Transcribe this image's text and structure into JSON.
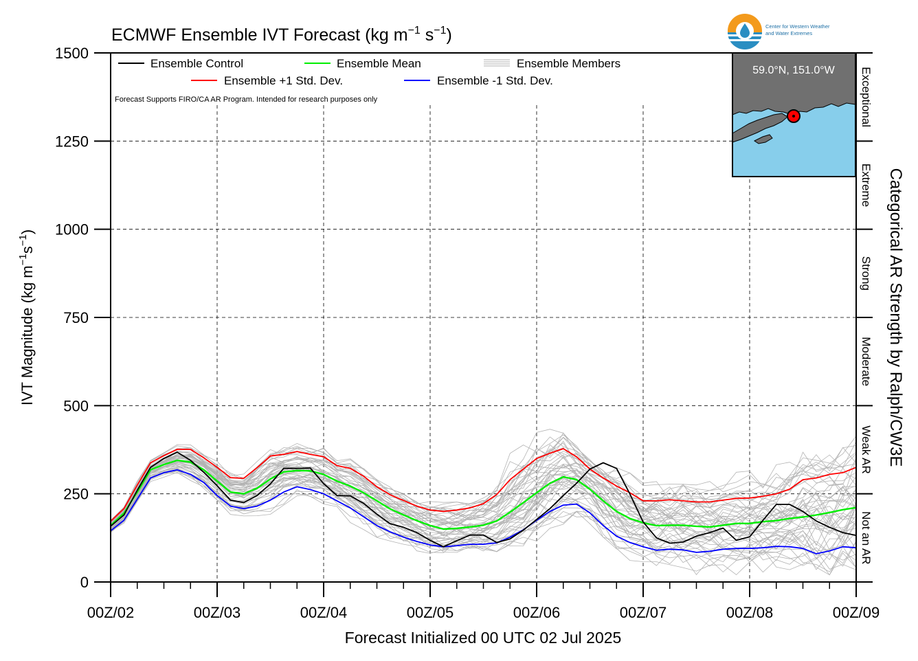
{
  "chart_data": {
    "type": "line",
    "title": "ECMWF Ensemble IVT Forecast (kg m",
    "title_sup1": "−1",
    "title_mid": " s",
    "title_sup2": "−1",
    "title_end": ")",
    "ylabel": "IVT Magnitude (kg m",
    "ylabel_sup1": "−1",
    "ylabel_mid": "s",
    "ylabel_sup2": "−1",
    "ylabel_end": ")",
    "xlabel": "Forecast Initialized 00 UTC 02 Jul 2025",
    "right_label": "Categorical AR Strength by Ralph/CW3E",
    "disclaimer": "Forecast Supports FIRO/CA AR Program. Intended for research purposes only",
    "ylim": [
      0,
      1500
    ],
    "xlim": [
      0,
      168
    ],
    "y_ticks": [
      0,
      250,
      500,
      750,
      1000,
      1250,
      1500
    ],
    "y_tick_labels": [
      "0",
      "250",
      "500",
      "750",
      "1000",
      "1250",
      "1500"
    ],
    "x_ticks": [
      0,
      24,
      48,
      72,
      96,
      120,
      144,
      168
    ],
    "x_tick_labels": [
      "00Z/02",
      "00Z/03",
      "00Z/04",
      "00Z/05",
      "00Z/06",
      "00Z/07",
      "00Z/08",
      "00Z/09"
    ],
    "categories": [
      {
        "label": "Not an AR",
        "from": 0,
        "to": 250
      },
      {
        "label": "Weak AR",
        "from": 250,
        "to": 500
      },
      {
        "label": "Moderate",
        "from": 500,
        "to": 750
      },
      {
        "label": "Strong",
        "from": 750,
        "to": 1000
      },
      {
        "label": "Extreme",
        "from": 1000,
        "to": 1250
      },
      {
        "label": "Exceptional",
        "from": 1250,
        "to": 1500
      }
    ],
    "legend": {
      "placement": "top-left",
      "control": "Ensemble Control",
      "mean": "Ensemble Mean",
      "members": "Ensemble Members",
      "plus_std": "Ensemble +1 Std. Dev.",
      "minus_std": "Ensemble -1 Std. Dev."
    },
    "inset": {
      "location_label": "59.0°N, 151.0°W",
      "land_color": "#707070",
      "ocean_color": "#87ceeb",
      "marker_color": "#ff0000"
    },
    "logo_text": [
      "Center for Western Weather",
      "and Water Extremes"
    ],
    "x": [
      0,
      3,
      6,
      9,
      12,
      15,
      18,
      21,
      24,
      27,
      30,
      33,
      36,
      39,
      42,
      45,
      48,
      51,
      54,
      57,
      60,
      63,
      66,
      69,
      72,
      75,
      78,
      81,
      84,
      87,
      90,
      93,
      96,
      99,
      102,
      105,
      108,
      111,
      114,
      117,
      120,
      123,
      126,
      129,
      132,
      135,
      138,
      141,
      144,
      147,
      150,
      153,
      156,
      159,
      162,
      165,
      168
    ],
    "series": [
      {
        "name": "Ensemble +1 Std. Dev.",
        "color": "#ff0000",
        "values": [
          172,
          208,
          275,
          338,
          358,
          376,
          376,
          352,
          325,
          296,
          294,
          324,
          357,
          362,
          370,
          362,
          355,
          330,
          322,
          300,
          270,
          247,
          231,
          215,
          204,
          200,
          204,
          210,
          222,
          248,
          290,
          320,
          350,
          365,
          378,
          355,
          320,
          295,
          272,
          253,
          230,
          230,
          233,
          230,
          227,
          227,
          232,
          237,
          238,
          243,
          250,
          263,
          290,
          295,
          305,
          310,
          325
        ]
      },
      {
        "name": "Ensemble Mean",
        "color": "#00ee00",
        "values": [
          160,
          195,
          255,
          318,
          333,
          345,
          340,
          318,
          286,
          255,
          250,
          266,
          292,
          312,
          316,
          315,
          305,
          286,
          272,
          253,
          230,
          207,
          190,
          174,
          160,
          150,
          152,
          156,
          161,
          173,
          198,
          225,
          253,
          280,
          298,
          290,
          263,
          230,
          200,
          180,
          168,
          160,
          161,
          161,
          158,
          156,
          161,
          166,
          166,
          171,
          174,
          180,
          184,
          190,
          197,
          205,
          211
        ]
      },
      {
        "name": "Ensemble -1 Std. Dev.",
        "color": "#0000ff",
        "values": [
          145,
          175,
          235,
          295,
          310,
          318,
          305,
          282,
          245,
          215,
          208,
          215,
          232,
          255,
          270,
          262,
          250,
          230,
          210,
          185,
          160,
          142,
          127,
          115,
          105,
          100,
          103,
          107,
          107,
          111,
          127,
          148,
          175,
          200,
          218,
          221,
          196,
          160,
          130,
          112,
          100,
          90,
          93,
          91,
          84,
          87,
          93,
          95,
          95,
          97,
          101,
          100,
          95,
          80,
          88,
          100,
          97
        ]
      },
      {
        "name": "Ensemble Control",
        "color": "#000000",
        "values": [
          158,
          190,
          260,
          325,
          350,
          368,
          345,
          311,
          273,
          232,
          225,
          245,
          278,
          322,
          322,
          323,
          279,
          245,
          244,
          223,
          192,
          165,
          155,
          140,
          118,
          100,
          117,
          133,
          133,
          112,
          122,
          147,
          177,
          208,
          245,
          280,
          320,
          338,
          322,
          250,
          170,
          125,
          110,
          113,
          130,
          140,
          153,
          118,
          128,
          175,
          220,
          220,
          200,
          173,
          155,
          140,
          132
        ]
      }
    ]
  }
}
